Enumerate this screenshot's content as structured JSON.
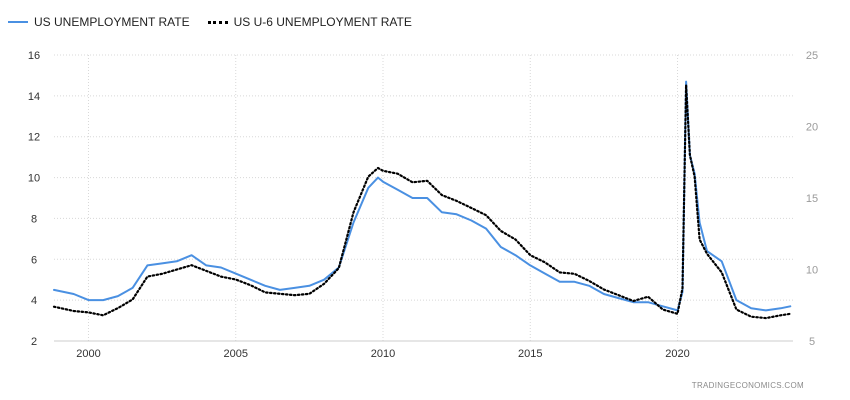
{
  "source_label": "TRADINGECONOMICS.COM",
  "chart_data": {
    "type": "line",
    "title": "",
    "xlabel": "",
    "ylabel": "",
    "x": [
      1998.83,
      1999.5,
      2000.0,
      2000.5,
      2001.0,
      2001.5,
      2002.0,
      2002.5,
      2003.0,
      2003.5,
      2004.0,
      2004.5,
      2005.0,
      2005.5,
      2006.0,
      2006.5,
      2007.0,
      2007.5,
      2008.0,
      2008.5,
      2009.0,
      2009.5,
      2009.83,
      2010.0,
      2010.5,
      2011.0,
      2011.5,
      2012.0,
      2012.5,
      2013.0,
      2013.5,
      2014.0,
      2014.5,
      2015.0,
      2015.5,
      2016.0,
      2016.5,
      2017.0,
      2017.5,
      2018.0,
      2018.5,
      2019.0,
      2019.5,
      2020.0,
      2020.17,
      2020.29,
      2020.42,
      2020.58,
      2020.75,
      2021.0,
      2021.5,
      2022.0,
      2022.5,
      2023.0,
      2023.5,
      2023.83
    ],
    "x_ticks": [
      "2000",
      "2005",
      "2010",
      "2015",
      "2020"
    ],
    "x_tick_values": [
      2000,
      2005,
      2010,
      2015,
      2020
    ],
    "xlim": [
      1998.83,
      2023.92
    ],
    "y_left_ticks": [
      "2",
      "4",
      "6",
      "8",
      "10",
      "12",
      "14",
      "16"
    ],
    "y_right_ticks": [
      "5",
      "10",
      "15",
      "20",
      "25"
    ],
    "ylim_left": [
      2,
      16
    ],
    "ylim_right": [
      5,
      25
    ],
    "grid": true,
    "legend": "top-left",
    "series": [
      {
        "name": "US UNEMPLOYMENT RATE",
        "axis": "left",
        "color": "#4a90e2",
        "style": "solid",
        "values": [
          4.5,
          4.3,
          4.0,
          4.0,
          4.2,
          4.6,
          5.7,
          5.8,
          5.9,
          6.2,
          5.7,
          5.6,
          5.3,
          5.0,
          4.7,
          4.5,
          4.6,
          4.7,
          5.0,
          5.6,
          7.8,
          9.5,
          10.0,
          9.8,
          9.4,
          9.0,
          9.0,
          8.3,
          8.2,
          7.9,
          7.5,
          6.6,
          6.2,
          5.7,
          5.3,
          4.9,
          4.9,
          4.7,
          4.3,
          4.1,
          3.9,
          3.9,
          3.7,
          3.5,
          4.4,
          14.7,
          11.1,
          10.2,
          7.8,
          6.4,
          5.9,
          4.0,
          3.6,
          3.5,
          3.6,
          3.7
        ]
      },
      {
        "name": "US U-6 UNEMPLOYMENT RATE",
        "axis": "right",
        "color": "#000000",
        "style": "dotted",
        "values": [
          7.4,
          7.1,
          7.0,
          6.8,
          7.3,
          7.9,
          9.5,
          9.7,
          10.0,
          10.3,
          9.9,
          9.5,
          9.3,
          8.9,
          8.4,
          8.3,
          8.2,
          8.3,
          9.0,
          10.1,
          14.0,
          16.5,
          17.1,
          16.9,
          16.7,
          16.1,
          16.2,
          15.2,
          14.8,
          14.3,
          13.8,
          12.7,
          12.1,
          11.0,
          10.5,
          9.8,
          9.7,
          9.2,
          8.6,
          8.2,
          7.8,
          8.1,
          7.2,
          6.9,
          8.7,
          22.9,
          18.0,
          16.5,
          12.1,
          11.1,
          9.8,
          7.2,
          6.7,
          6.6,
          6.8,
          6.9
        ]
      }
    ]
  }
}
